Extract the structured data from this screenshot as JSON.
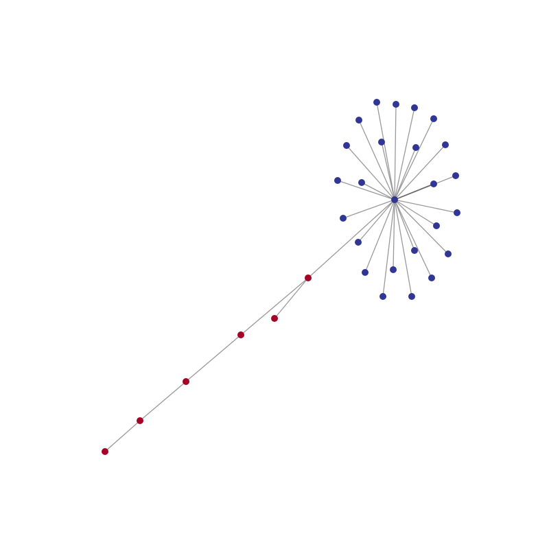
{
  "graph": {
    "colors": {
      "background": "#ffffff",
      "edge": "#999999",
      "edge_highlight": "#666666",
      "group_blue": "#313695",
      "group_red": "#a50026"
    },
    "node_groups": {
      "hub": "group_blue",
      "b1": "group_blue",
      "b2": "group_blue",
      "b3": "group_blue",
      "b4": "group_blue",
      "b5": "group_blue",
      "b6": "group_blue",
      "b7": "group_blue",
      "b8": "group_blue",
      "b9": "group_blue",
      "b10": "group_blue",
      "b11": "group_blue",
      "b12": "group_blue",
      "b13": "group_blue",
      "b14": "group_blue",
      "b15": "group_blue",
      "b16": "group_blue",
      "b17": "group_blue",
      "b18": "group_blue",
      "b19": "group_blue",
      "b20": "group_blue",
      "b21": "group_blue",
      "b22": "group_blue",
      "b23": "group_blue",
      "r1": "group_red",
      "r2": "group_red",
      "r3": "group_red",
      "r4": "group_red",
      "r5": "group_red",
      "r6": "group_red"
    },
    "edges": [
      [
        "hub",
        "b1"
      ],
      [
        "hub",
        "b2"
      ],
      [
        "hub",
        "b3"
      ],
      [
        "hub",
        "b4"
      ],
      [
        "hub",
        "b5"
      ],
      [
        "hub",
        "b6"
      ],
      [
        "hub",
        "b7"
      ],
      [
        "hub",
        "b8"
      ],
      [
        "hub",
        "b9"
      ],
      [
        "hub",
        "b10"
      ],
      [
        "hub",
        "b11"
      ],
      [
        "hub",
        "b12"
      ],
      [
        "hub",
        "b13"
      ],
      [
        "hub",
        "b14"
      ],
      [
        "hub",
        "b15"
      ],
      [
        "hub",
        "b16"
      ],
      [
        "hub",
        "b17"
      ],
      [
        "hub",
        "b18"
      ],
      [
        "hub",
        "b19"
      ],
      [
        "hub",
        "b20"
      ],
      [
        "hub",
        "b21"
      ],
      [
        "hub",
        "b22"
      ],
      [
        "hub",
        "b23"
      ],
      [
        "hub",
        "r1"
      ],
      [
        "r1",
        "r2"
      ],
      [
        "r1",
        "r3"
      ],
      [
        "r3",
        "r4"
      ],
      [
        "r4",
        "r5"
      ],
      [
        "r5",
        "r6"
      ]
    ],
    "highlight_edges": [
      [
        "hub",
        "b17"
      ]
    ]
  }
}
